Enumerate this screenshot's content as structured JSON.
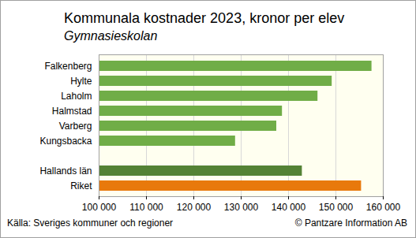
{
  "chart_data": {
    "type": "bar",
    "orientation": "horizontal",
    "title": "Kommunala kostnader 2023, kronor per elev",
    "subtitle": "Gymnasieskolan",
    "source": "Källa: Sveriges kommuner och regioner",
    "credit": "© Pantzare Information AB",
    "categories": [
      "Falkenberg",
      "Hylte",
      "Laholm",
      "Halmstad",
      "Varberg",
      "Kungsbacka",
      null,
      "Hallands län",
      "Riket"
    ],
    "values": [
      157600,
      149200,
      146200,
      138700,
      137500,
      128800,
      null,
      142900,
      155400
    ],
    "colors": [
      "#70ad47",
      "#70ad47",
      "#70ad47",
      "#70ad47",
      "#70ad47",
      "#70ad47",
      null,
      "#548235",
      "#e8790c"
    ],
    "xlim": [
      100000,
      160000
    ],
    "xticks": [
      {
        "value": 100000,
        "label": "100 000"
      },
      {
        "value": 110000,
        "label": "110 000"
      },
      {
        "value": 120000,
        "label": "120 000"
      },
      {
        "value": 130000,
        "label": "130 000"
      },
      {
        "value": 140000,
        "label": "140 000"
      },
      {
        "value": 150000,
        "label": "150 000"
      },
      {
        "value": 160000,
        "label": "160 000"
      }
    ],
    "grid": true
  }
}
